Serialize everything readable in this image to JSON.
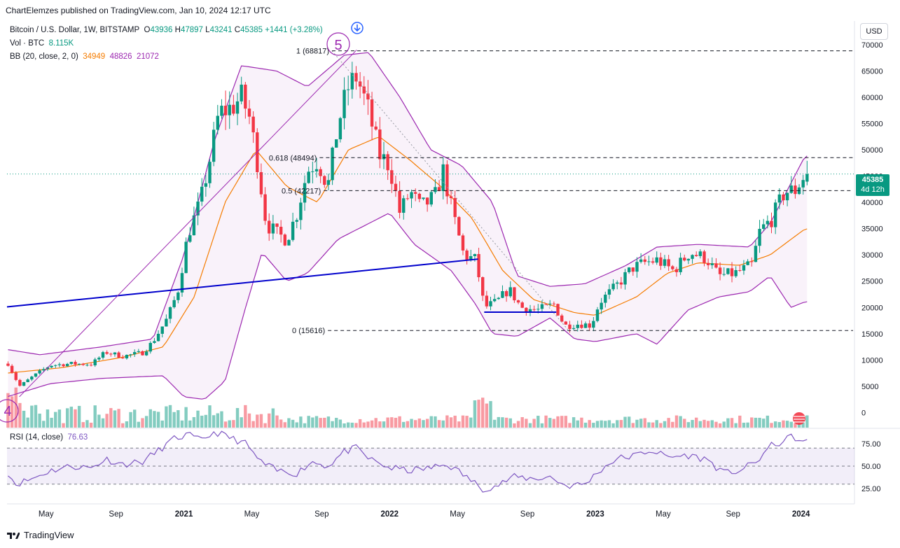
{
  "header": {
    "published": "ChartElemzes published on TradingView.com, Jan 10, 2024 12:17 UTC"
  },
  "legend": {
    "symbol": "Bitcoin / U.S. Dollar, 1W, BITSTAMP",
    "o_label": "O",
    "o_value": "43936",
    "h_label": "H",
    "h_value": "47897",
    "l_label": "L",
    "l_value": "43241",
    "c_label": "C",
    "c_value": "45385",
    "change": "+1441 (+3.28%)",
    "vol_label": "Vol · BTC",
    "vol_value": "8.115K",
    "bb_label": "BB (20, close, 2, 0)",
    "bb_basis": "34949",
    "bb_upper": "48826",
    "bb_lower": "21072"
  },
  "rsi_legend": {
    "label": "RSI (14, close)",
    "value": "76.63"
  },
  "currency_button": "USD",
  "price_tag": {
    "price": "45385",
    "countdown": "4d 12h"
  },
  "wave_labels": {
    "five": "5",
    "four": "4"
  },
  "fib_labels": {
    "one": "1 (68817)",
    "f618": "0.618 (48494)",
    "f05": "0.5 (42217)",
    "zero": "0 (15616)"
  },
  "footer": {
    "brand": "TradingView"
  },
  "colors": {
    "up": "#089981",
    "down": "#f23645",
    "bb_band": "#9c27b0",
    "bb_basis": "#f57c00",
    "trend": "#0000cc",
    "rsi": "#7e57c2"
  },
  "chart_data": [
    {
      "type": "candlestick",
      "title": "Bitcoin / U.S. Dollar, 1W, BITSTAMP",
      "y_ticks": [
        0,
        5000,
        10000,
        15000,
        20000,
        25000,
        30000,
        35000,
        40000,
        45000,
        50000,
        55000,
        60000,
        65000,
        70000
      ],
      "x_ticks": [
        "May",
        "Sep",
        "2021",
        "May",
        "Sep",
        "2022",
        "May",
        "Sep",
        "2023",
        "May",
        "Sep",
        "2024"
      ],
      "x_tick_times": [
        2020.33,
        2020.67,
        2021.0,
        2021.33,
        2021.67,
        2022.0,
        2022.33,
        2022.67,
        2023.0,
        2023.33,
        2023.67,
        2024.0
      ],
      "x_range": [
        2020.14,
        2024.26
      ],
      "y_range": [
        -3000,
        74500
      ],
      "closes_anchors": [
        [
          2020.14,
          9700
        ],
        [
          2020.2,
          5000
        ],
        [
          2020.27,
          7000
        ],
        [
          2020.35,
          9000
        ],
        [
          2020.45,
          9300
        ],
        [
          2020.55,
          9200
        ],
        [
          2020.62,
          11500
        ],
        [
          2020.7,
          10700
        ],
        [
          2020.8,
          11400
        ],
        [
          2020.85,
          13500
        ],
        [
          2020.92,
          18000
        ],
        [
          2020.97,
          23000
        ],
        [
          2021.02,
          34000
        ],
        [
          2021.08,
          40000
        ],
        [
          2021.12,
          47000
        ],
        [
          2021.17,
          57000
        ],
        [
          2021.23,
          58000
        ],
        [
          2021.28,
          60000
        ],
        [
          2021.32,
          56000
        ],
        [
          2021.36,
          47000
        ],
        [
          2021.4,
          36000
        ],
        [
          2021.45,
          34000
        ],
        [
          2021.5,
          33000
        ],
        [
          2021.55,
          38000
        ],
        [
          2021.6,
          46000
        ],
        [
          2021.65,
          48000
        ],
        [
          2021.7,
          43000
        ],
        [
          2021.75,
          55000
        ],
        [
          2021.8,
          62000
        ],
        [
          2021.84,
          64000
        ],
        [
          2021.9,
          57000
        ],
        [
          2021.95,
          49000
        ],
        [
          2022.0,
          47000
        ],
        [
          2022.05,
          38000
        ],
        [
          2022.1,
          42000
        ],
        [
          2022.15,
          39000
        ],
        [
          2022.22,
          41000
        ],
        [
          2022.26,
          46000
        ],
        [
          2022.3,
          39000
        ],
        [
          2022.36,
          30000
        ],
        [
          2022.42,
          29000
        ],
        [
          2022.46,
          20000
        ],
        [
          2022.52,
          21000
        ],
        [
          2022.58,
          23500
        ],
        [
          2022.64,
          20000
        ],
        [
          2022.72,
          19500
        ],
        [
          2022.8,
          20600
        ],
        [
          2022.85,
          16500
        ],
        [
          2022.92,
          16900
        ],
        [
          2022.98,
          16600
        ],
        [
          2023.02,
          21000
        ],
        [
          2023.1,
          24000
        ],
        [
          2023.18,
          27500
        ],
        [
          2023.24,
          28500
        ],
        [
          2023.3,
          29000
        ],
        [
          2023.38,
          27000
        ],
        [
          2023.46,
          30500
        ],
        [
          2023.54,
          29300
        ],
        [
          2023.6,
          26000
        ],
        [
          2023.68,
          26500
        ],
        [
          2023.76,
          28000
        ],
        [
          2023.8,
          34500
        ],
        [
          2023.86,
          37000
        ],
        [
          2023.92,
          42000
        ],
        [
          2023.97,
          42200
        ],
        [
          2024.02,
          45385
        ]
      ],
      "volume_axis_max_btc": 120000,
      "bollinger": {
        "period": 20,
        "stddev": 2,
        "basis_last": 34949,
        "upper_last": 48826,
        "lower_last": 21072,
        "upper_anchors": [
          [
            2020.14,
            12000
          ],
          [
            2020.3,
            11000
          ],
          [
            2020.6,
            12500
          ],
          [
            2020.85,
            14000
          ],
          [
            2021.0,
            30000
          ],
          [
            2021.15,
            52000
          ],
          [
            2021.28,
            66000
          ],
          [
            2021.45,
            65000
          ],
          [
            2021.6,
            62000
          ],
          [
            2021.78,
            68000
          ],
          [
            2021.9,
            68500
          ],
          [
            2022.05,
            60000
          ],
          [
            2022.2,
            50000
          ],
          [
            2022.35,
            47000
          ],
          [
            2022.5,
            40000
          ],
          [
            2022.62,
            26000
          ],
          [
            2022.78,
            24000
          ],
          [
            2022.95,
            24500
          ],
          [
            2023.15,
            28000
          ],
          [
            2023.3,
            31500
          ],
          [
            2023.5,
            32000
          ],
          [
            2023.75,
            31500
          ],
          [
            2023.85,
            36000
          ],
          [
            2024.02,
            48826
          ]
        ],
        "basis_anchors": [
          [
            2020.14,
            7500
          ],
          [
            2020.4,
            8500
          ],
          [
            2020.7,
            10500
          ],
          [
            2020.9,
            12500
          ],
          [
            2021.05,
            22000
          ],
          [
            2021.2,
            40000
          ],
          [
            2021.35,
            50000
          ],
          [
            2021.5,
            43000
          ],
          [
            2021.65,
            40000
          ],
          [
            2021.8,
            50000
          ],
          [
            2021.95,
            52500
          ],
          [
            2022.1,
            48000
          ],
          [
            2022.25,
            43000
          ],
          [
            2022.4,
            37000
          ],
          [
            2022.55,
            27000
          ],
          [
            2022.7,
            21500
          ],
          [
            2022.9,
            19000
          ],
          [
            2023.0,
            18500
          ],
          [
            2023.2,
            22000
          ],
          [
            2023.35,
            26500
          ],
          [
            2023.5,
            28500
          ],
          [
            2023.7,
            28000
          ],
          [
            2023.85,
            30000
          ],
          [
            2024.02,
            34949
          ]
        ],
        "lower_anchors": [
          [
            2020.14,
            3000
          ],
          [
            2020.35,
            5500
          ],
          [
            2020.6,
            6500
          ],
          [
            2020.9,
            7000
          ],
          [
            2021.0,
            3000
          ],
          [
            2021.1,
            2500
          ],
          [
            2021.2,
            6000
          ],
          [
            2021.3,
            20000
          ],
          [
            2021.38,
            30500
          ],
          [
            2021.5,
            25000
          ],
          [
            2021.6,
            26500
          ],
          [
            2021.75,
            33000
          ],
          [
            2021.9,
            36000
          ],
          [
            2022.0,
            38000
          ],
          [
            2022.12,
            32000
          ],
          [
            2022.3,
            27000
          ],
          [
            2022.42,
            20500
          ],
          [
            2022.5,
            15000
          ],
          [
            2022.62,
            14500
          ],
          [
            2022.78,
            18000
          ],
          [
            2022.9,
            14000
          ],
          [
            2023.0,
            13500
          ],
          [
            2023.2,
            15000
          ],
          [
            2023.3,
            13000
          ],
          [
            2023.45,
            19500
          ],
          [
            2023.6,
            22000
          ],
          [
            2023.75,
            23000
          ],
          [
            2023.85,
            26000
          ],
          [
            2023.95,
            20000
          ],
          [
            2024.02,
            21072
          ]
        ]
      },
      "fibonacci": [
        {
          "level": "1",
          "price": 68817
        },
        {
          "level": "0.618",
          "price": 48494
        },
        {
          "level": "0.5",
          "price": 42217
        },
        {
          "level": "0",
          "price": 15616
        }
      ],
      "trendlines": [
        {
          "from": [
            2020.14,
            20100
          ],
          "to": [
            2022.43,
            29200
          ]
        },
        {
          "from": [
            2022.46,
            19100
          ],
          "to": [
            2022.81,
            19100
          ]
        }
      ]
    },
    {
      "type": "line",
      "title": "RSI (14, close)",
      "y_ticks": [
        25,
        50,
        75
      ],
      "y_range": [
        8,
        92
      ],
      "bands": {
        "upper": 70,
        "middle": 50,
        "lower": 30
      },
      "last_value": 76.63,
      "anchors": [
        [
          2020.14,
          45
        ],
        [
          2020.18,
          30
        ],
        [
          2020.25,
          35
        ],
        [
          2020.35,
          45
        ],
        [
          2020.45,
          50
        ],
        [
          2020.55,
          48
        ],
        [
          2020.62,
          58
        ],
        [
          2020.7,
          52
        ],
        [
          2020.8,
          55
        ],
        [
          2020.88,
          68
        ],
        [
          2020.95,
          80
        ],
        [
          2021.02,
          85
        ],
        [
          2021.08,
          78
        ],
        [
          2021.15,
          88
        ],
        [
          2021.22,
          82
        ],
        [
          2021.3,
          75
        ],
        [
          2021.37,
          55
        ],
        [
          2021.45,
          45
        ],
        [
          2021.55,
          42
        ],
        [
          2021.62,
          55
        ],
        [
          2021.7,
          50
        ],
        [
          2021.78,
          66
        ],
        [
          2021.84,
          70
        ],
        [
          2021.9,
          58
        ],
        [
          2022.0,
          48
        ],
        [
          2022.1,
          45
        ],
        [
          2022.2,
          48
        ],
        [
          2022.28,
          52
        ],
        [
          2022.35,
          42
        ],
        [
          2022.45,
          25
        ],
        [
          2022.52,
          28
        ],
        [
          2022.6,
          38
        ],
        [
          2022.7,
          36
        ],
        [
          2022.78,
          38
        ],
        [
          2022.86,
          28
        ],
        [
          2022.95,
          30
        ],
        [
          2023.02,
          45
        ],
        [
          2023.1,
          58
        ],
        [
          2023.2,
          62
        ],
        [
          2023.27,
          68
        ],
        [
          2023.35,
          60
        ],
        [
          2023.45,
          62
        ],
        [
          2023.55,
          57
        ],
        [
          2023.62,
          42
        ],
        [
          2023.7,
          45
        ],
        [
          2023.78,
          54
        ],
        [
          2023.85,
          72
        ],
        [
          2023.92,
          78
        ],
        [
          2023.96,
          84
        ],
        [
          2024.0,
          76
        ],
        [
          2024.03,
          76.63
        ]
      ]
    }
  ]
}
